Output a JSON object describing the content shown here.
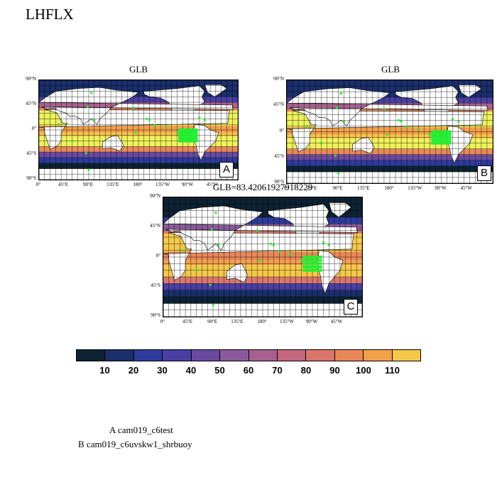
{
  "figure": {
    "title": "LHFLX",
    "legend": [
      "A  cam019_c6test",
      "B  cam019_c6uvskw1_shrbuoy"
    ]
  },
  "panels": [
    {
      "id": "A",
      "title": "GLB",
      "label": "A"
    },
    {
      "id": "B",
      "title": "GLB",
      "label": "B"
    },
    {
      "id": "C",
      "title": "GLB=83.42061927918229",
      "label": "C"
    }
  ],
  "axes": {
    "lat_ticks": [
      "90°N",
      "45°N",
      "0°",
      "45°S",
      "90°S"
    ],
    "lon_ticks": [
      "0°",
      "45°E",
      "90°E",
      "135°E",
      "180°",
      "135°W",
      "90°W",
      "45°W"
    ]
  },
  "colors": {
    "ocean_bins": [
      "#0d2233",
      "#1a2f6b",
      "#2e3b9c",
      "#4a3fa3",
      "#6a4aa0",
      "#8a5a9c",
      "#a8608f",
      "#c2677e",
      "#d9766b",
      "#e88858",
      "#f2a04a",
      "#f5c84a",
      "#eef25a"
    ],
    "land": "#ffffff",
    "sig_marker": "#22ee33"
  },
  "chart_data": {
    "type": "heatmap",
    "variable": "LHFLX",
    "colorbar": {
      "levels": [
        10,
        20,
        30,
        40,
        50,
        60,
        70,
        80,
        90,
        100,
        110
      ],
      "labels": [
        "10",
        "20",
        "30",
        "40",
        "50",
        "60",
        "70",
        "80",
        "90",
        "100",
        "110"
      ]
    },
    "panel_C_global_mean": 83.42061927918229,
    "lat_range": [
      -90,
      90
    ],
    "lon_range": [
      0,
      360
    ]
  }
}
